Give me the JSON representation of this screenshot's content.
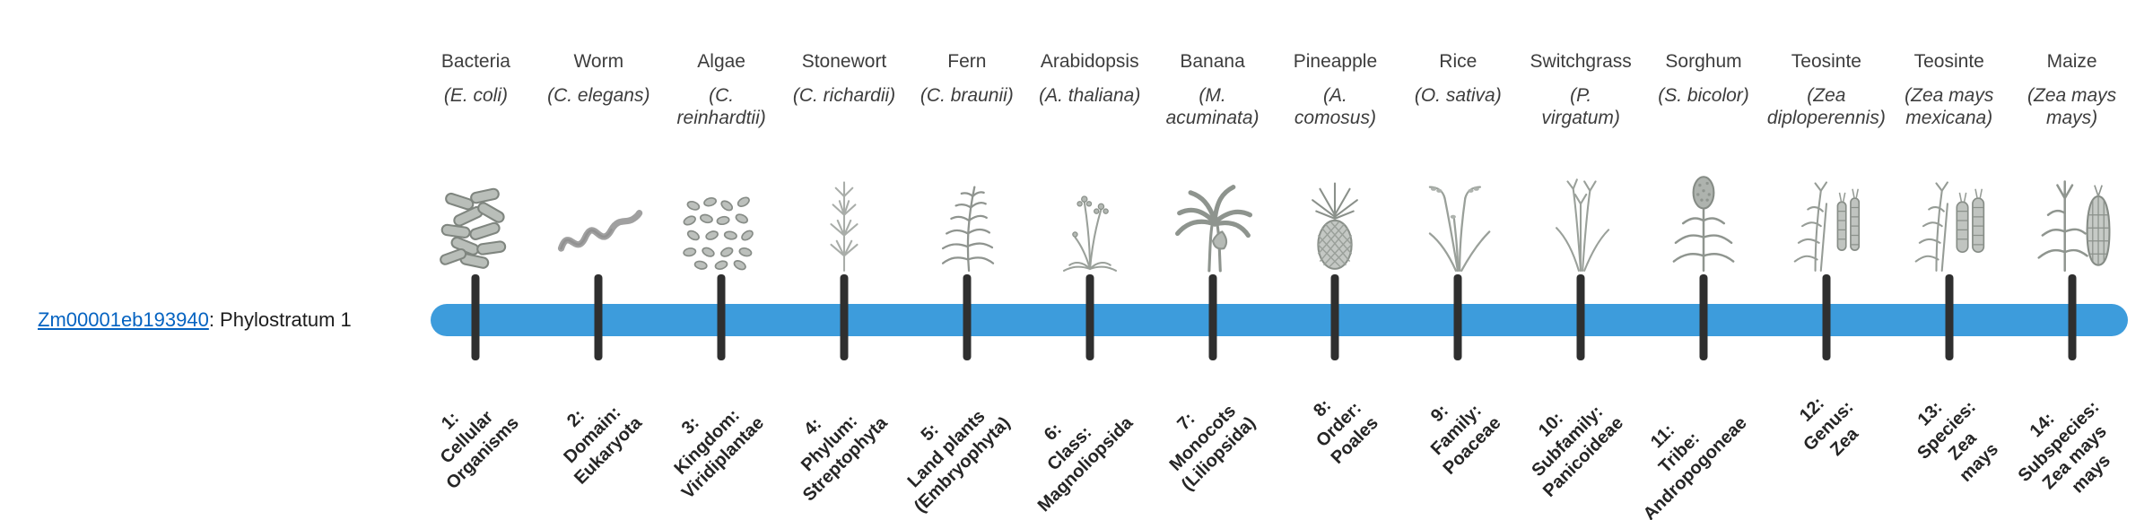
{
  "gene": {
    "id": "Zm00001eb193940",
    "suffix": ": Phylostratum 1"
  },
  "colors": {
    "bar": "#3D9CDC",
    "tick": "#2F2F2F",
    "link": "#0563C1"
  },
  "taxa": [
    {
      "level": 1,
      "common": "Bacteria",
      "sci": "(E. coli)",
      "icon": "bacteria-icon",
      "label": "1:\nCellular\nOrganisms"
    },
    {
      "level": 2,
      "common": "Worm",
      "sci": "(C. elegans)",
      "icon": "worm-icon",
      "label": "2:\nDomain:\nEukaryota"
    },
    {
      "level": 3,
      "common": "Algae",
      "sci": "(C.\nreinhardtii)",
      "icon": "algae-icon",
      "label": "3:\nKingdom:\nViridiplantae"
    },
    {
      "level": 4,
      "common": "Stonewort",
      "sci": "(C. richardii)",
      "icon": "stonewort-icon",
      "label": "4:\nPhylum:\nStreptophyta"
    },
    {
      "level": 5,
      "common": "Fern",
      "sci": "(C. braunii)",
      "icon": "fern-icon",
      "label": "5:\nLand plants\n(Embryophyta)"
    },
    {
      "level": 6,
      "common": "Arabidopsis",
      "sci": "(A. thaliana)",
      "icon": "arabidopsis-icon",
      "label": "6:\nClass:\nMagnoliopsida"
    },
    {
      "level": 7,
      "common": "Banana",
      "sci": "(M.\nacuminata)",
      "icon": "banana-icon",
      "label": "7:\nMonocots\n(Liliopsida)"
    },
    {
      "level": 8,
      "common": "Pineapple",
      "sci": "(A.\ncomosus)",
      "icon": "pineapple-icon",
      "label": "8:\nOrder:\nPoales"
    },
    {
      "level": 9,
      "common": "Rice",
      "sci": "(O. sativa)",
      "icon": "rice-icon",
      "label": "9:\nFamily:\nPoaceae"
    },
    {
      "level": 10,
      "common": "Switchgrass",
      "sci": "(P.\nvirgatum)",
      "icon": "switchgrass-icon",
      "label": "10:\nSubfamily:\nPanicoideae"
    },
    {
      "level": 11,
      "common": "Sorghum",
      "sci": "(S. bicolor)",
      "icon": "sorghum-icon",
      "label": "11:\nTribe:\nAndropogoneae"
    },
    {
      "level": 12,
      "common": "Teosinte",
      "sci": "(Zea\ndiploperennis)",
      "icon": "teosinte-diploperennis-icon",
      "label": "12:\nGenus:\nZea"
    },
    {
      "level": 13,
      "common": "Teosinte",
      "sci": "(Zea mays\nmexicana)",
      "icon": "teosinte-mexicana-icon",
      "label": "13:\nSpecies:\nZea\nmays"
    },
    {
      "level": 14,
      "common": "Maize",
      "sci": "(Zea mays\nmays)",
      "icon": "maize-icon",
      "label": "14:\nSubspecies:\nZea mays\nmays"
    }
  ]
}
